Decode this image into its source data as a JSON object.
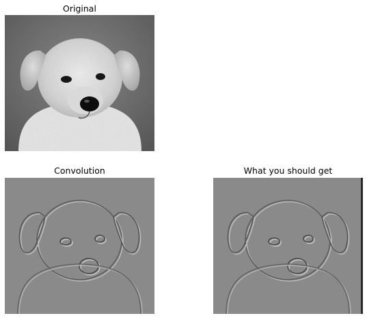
{
  "panels": {
    "original": {
      "title": "Original"
    },
    "convolution": {
      "title": "Convolution"
    },
    "expected": {
      "title": "What you should get"
    }
  }
}
